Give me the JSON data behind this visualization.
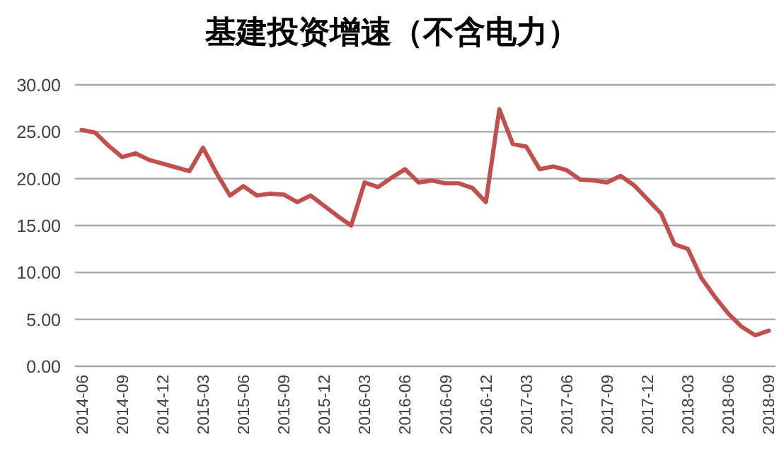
{
  "chart_data": {
    "type": "line",
    "title": "基建投资增速（不含电力）",
    "categories": [
      "2014-06",
      null,
      null,
      "2014-09",
      null,
      null,
      "2014-12",
      null,
      null,
      "2015-03",
      null,
      null,
      "2015-06",
      null,
      null,
      "2015-09",
      null,
      null,
      "2015-12",
      null,
      null,
      "2016-03",
      null,
      null,
      "2016-06",
      null,
      null,
      "2016-09",
      null,
      null,
      "2016-12",
      null,
      null,
      "2017-03",
      null,
      null,
      "2017-06",
      null,
      null,
      "2017-09",
      null,
      null,
      "2017-12",
      null,
      null,
      "2018-03",
      null,
      null,
      "2018-06",
      null,
      null,
      "2018-09"
    ],
    "series": [
      {
        "color": "#c0504d",
        "values": [
          25.2,
          24.9,
          23.5,
          22.3,
          22.7,
          22.0,
          21.6,
          21.2,
          20.8,
          23.3,
          20.6,
          18.2,
          19.2,
          18.2,
          18.4,
          18.3,
          17.5,
          18.2,
          17.1,
          16.0,
          15.0,
          19.6,
          19.1,
          20.1,
          21.0,
          19.6,
          19.8,
          19.5,
          19.5,
          19.0,
          17.5,
          27.4,
          23.7,
          23.4,
          21.0,
          21.3,
          20.9,
          19.9,
          19.8,
          19.6,
          20.3,
          19.3,
          17.8,
          16.3,
          13.0,
          12.5,
          9.4,
          7.4,
          5.6,
          4.2,
          3.3,
          3.8
        ]
      }
    ],
    "ylim": [
      0,
      30
    ],
    "yticks": [
      {
        "value": 0,
        "label": "0.00"
      },
      {
        "value": 5,
        "label": "5.00"
      },
      {
        "value": 10,
        "label": "10.00"
      },
      {
        "value": 15,
        "label": "15.00"
      },
      {
        "value": 20,
        "label": "20.00"
      },
      {
        "value": 25,
        "label": "25.00"
      },
      {
        "value": 30,
        "label": "30.00"
      }
    ],
    "grid": "y",
    "marker": "none",
    "line_style": "solid"
  }
}
